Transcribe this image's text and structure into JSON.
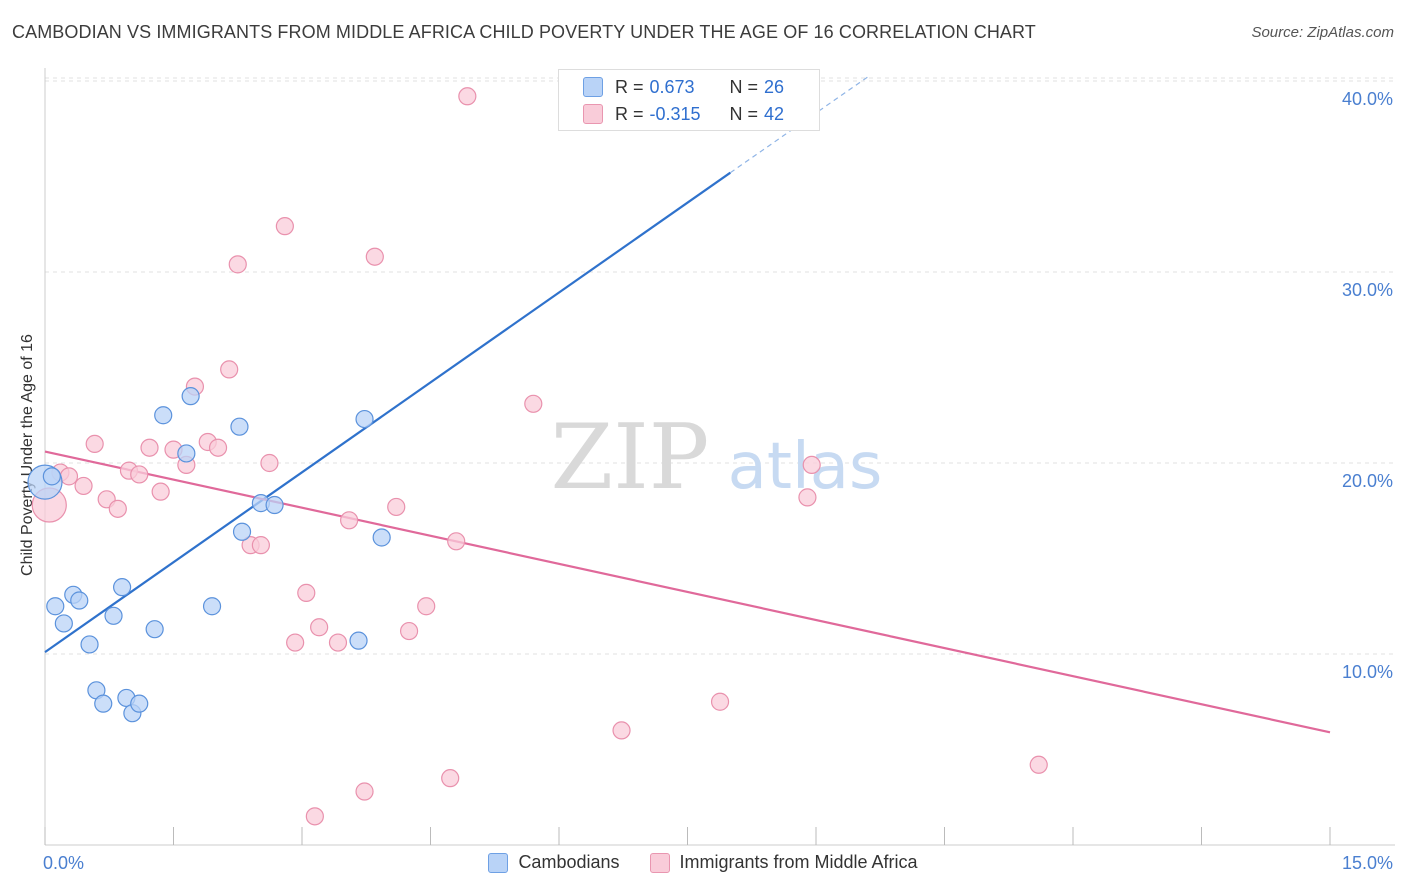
{
  "title": "CAMBODIAN VS IMMIGRANTS FROM MIDDLE AFRICA CHILD POVERTY UNDER THE AGE OF 16 CORRELATION CHART",
  "source": "Source: ZipAtlas.com",
  "watermark": {
    "zip": "ZIP",
    "atlas": "atlas"
  },
  "colors": {
    "blue_fill": "#b9d3f7",
    "blue_stroke": "#5b92dc",
    "blue_line": "#2f72cc",
    "pink_fill": "#f9ccd9",
    "pink_stroke": "#e991ad",
    "pink_line": "#e0699a",
    "axis_text": "#4a7fd0",
    "grid": "#e2e2e2"
  },
  "stats": {
    "row1": {
      "r_label": "R =",
      "r_value": "0.673",
      "n_label": "N =",
      "n_value": "26"
    },
    "row2": {
      "r_label": "R =",
      "r_value": "-0.315",
      "n_label": "N =",
      "n_value": "42"
    }
  },
  "legend": {
    "series1": "Cambodians",
    "series2": "Immigrants from Middle Africa"
  },
  "chart_data": {
    "type": "scatter",
    "title": "CAMBODIAN VS IMMIGRANTS FROM MIDDLE AFRICA CHILD POVERTY UNDER THE AGE OF 16 CORRELATION CHART",
    "xlabel": "",
    "ylabel": "Child Poverty Under the Age of 16",
    "xlim": [
      0,
      15
    ],
    "ylim": [
      0,
      40
    ],
    "x_tick_labels": [
      "0.0%",
      "15.0%"
    ],
    "y_ticks": [
      10,
      20,
      30,
      40
    ],
    "y_tick_labels": [
      "10.0%",
      "20.0%",
      "30.0%",
      "40.0%"
    ],
    "grid": true,
    "series": [
      {
        "name": "Cambodians",
        "points": [
          {
            "x": 0.0,
            "y": 19.0
          },
          {
            "x": 0.12,
            "y": 12.5
          },
          {
            "x": 0.22,
            "y": 11.6
          },
          {
            "x": 0.33,
            "y": 13.1
          },
          {
            "x": 0.4,
            "y": 12.8
          },
          {
            "x": 0.52,
            "y": 10.5
          },
          {
            "x": 0.6,
            "y": 8.1
          },
          {
            "x": 0.68,
            "y": 7.4
          },
          {
            "x": 0.8,
            "y": 12.0
          },
          {
            "x": 0.9,
            "y": 13.5
          },
          {
            "x": 0.95,
            "y": 7.7
          },
          {
            "x": 1.02,
            "y": 6.9
          },
          {
            "x": 1.1,
            "y": 7.4
          },
          {
            "x": 1.28,
            "y": 11.3
          },
          {
            "x": 1.38,
            "y": 22.5
          },
          {
            "x": 1.65,
            "y": 20.5
          },
          {
            "x": 1.7,
            "y": 23.5
          },
          {
            "x": 1.95,
            "y": 12.5
          },
          {
            "x": 2.27,
            "y": 21.9
          },
          {
            "x": 2.3,
            "y": 16.4
          },
          {
            "x": 2.52,
            "y": 17.9
          },
          {
            "x": 2.68,
            "y": 17.8
          },
          {
            "x": 3.66,
            "y": 10.7
          },
          {
            "x": 3.73,
            "y": 22.3
          },
          {
            "x": 3.93,
            "y": 16.1
          },
          {
            "x": 0.08,
            "y": 19.3
          }
        ],
        "trend": {
          "x": [
            0.0,
            8.0
          ],
          "y": [
            10.1,
            35.2
          ],
          "dashed_to": {
            "x": 9.6,
            "y": 40.2
          }
        }
      },
      {
        "name": "Immigrants from Middle Africa",
        "points": [
          {
            "x": 0.05,
            "y": 17.8
          },
          {
            "x": 0.18,
            "y": 19.5
          },
          {
            "x": 0.28,
            "y": 19.3
          },
          {
            "x": 0.45,
            "y": 18.8
          },
          {
            "x": 0.58,
            "y": 21.0
          },
          {
            "x": 0.72,
            "y": 18.1
          },
          {
            "x": 0.85,
            "y": 17.6
          },
          {
            "x": 0.98,
            "y": 19.6
          },
          {
            "x": 1.1,
            "y": 19.4
          },
          {
            "x": 1.22,
            "y": 20.8
          },
          {
            "x": 1.35,
            "y": 18.5
          },
          {
            "x": 1.5,
            "y": 20.7
          },
          {
            "x": 1.65,
            "y": 19.9
          },
          {
            "x": 1.75,
            "y": 24.0
          },
          {
            "x": 1.9,
            "y": 21.1
          },
          {
            "x": 2.02,
            "y": 20.8
          },
          {
            "x": 2.15,
            "y": 24.9
          },
          {
            "x": 2.25,
            "y": 30.4
          },
          {
            "x": 2.4,
            "y": 15.7
          },
          {
            "x": 2.52,
            "y": 15.7
          },
          {
            "x": 2.62,
            "y": 20.0
          },
          {
            "x": 2.8,
            "y": 32.4
          },
          {
            "x": 2.92,
            "y": 10.6
          },
          {
            "x": 3.05,
            "y": 13.2
          },
          {
            "x": 3.15,
            "y": 1.5
          },
          {
            "x": 3.2,
            "y": 11.4
          },
          {
            "x": 3.42,
            "y": 10.6
          },
          {
            "x": 3.55,
            "y": 17.0
          },
          {
            "x": 3.73,
            "y": 2.8
          },
          {
            "x": 3.85,
            "y": 30.8
          },
          {
            "x": 4.1,
            "y": 17.7
          },
          {
            "x": 4.25,
            "y": 11.2
          },
          {
            "x": 4.45,
            "y": 12.5
          },
          {
            "x": 4.73,
            "y": 3.5
          },
          {
            "x": 4.8,
            "y": 15.9
          },
          {
            "x": 4.93,
            "y": 39.2
          },
          {
            "x": 5.7,
            "y": 23.1
          },
          {
            "x": 6.73,
            "y": 6.0
          },
          {
            "x": 7.88,
            "y": 7.5
          },
          {
            "x": 8.9,
            "y": 18.2
          },
          {
            "x": 8.95,
            "y": 19.9
          },
          {
            "x": 11.6,
            "y": 4.2
          }
        ],
        "trend": {
          "x": [
            0.0,
            15.0
          ],
          "y": [
            20.6,
            5.9
          ]
        }
      }
    ]
  }
}
